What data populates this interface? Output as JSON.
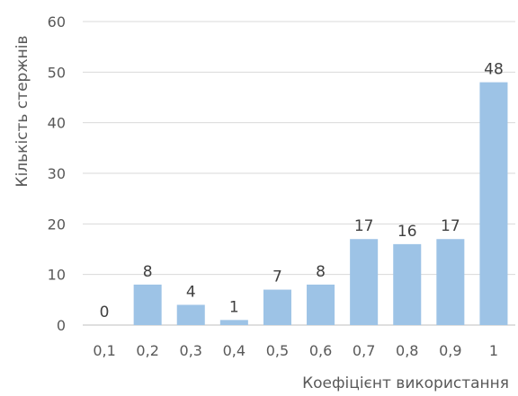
{
  "chart_data": {
    "type": "bar",
    "categories": [
      "0,1",
      "0,2",
      "0,3",
      "0,4",
      "0,5",
      "0,6",
      "0,7",
      "0,8",
      "0,9",
      "1"
    ],
    "values": [
      0,
      8,
      4,
      1,
      7,
      8,
      17,
      16,
      17,
      48
    ],
    "data_labels": [
      "0",
      "8",
      "4",
      "1",
      "7",
      "8",
      "17",
      "16",
      "17",
      "48"
    ],
    "yticks": [
      0,
      10,
      20,
      30,
      40,
      50,
      60
    ],
    "ylim": [
      0,
      60
    ],
    "xlabel": "Коефіцієнт використання",
    "ylabel": "Кількість стержнів",
    "grid": true,
    "legend": "none",
    "bar_color": "#9dc3e6"
  }
}
